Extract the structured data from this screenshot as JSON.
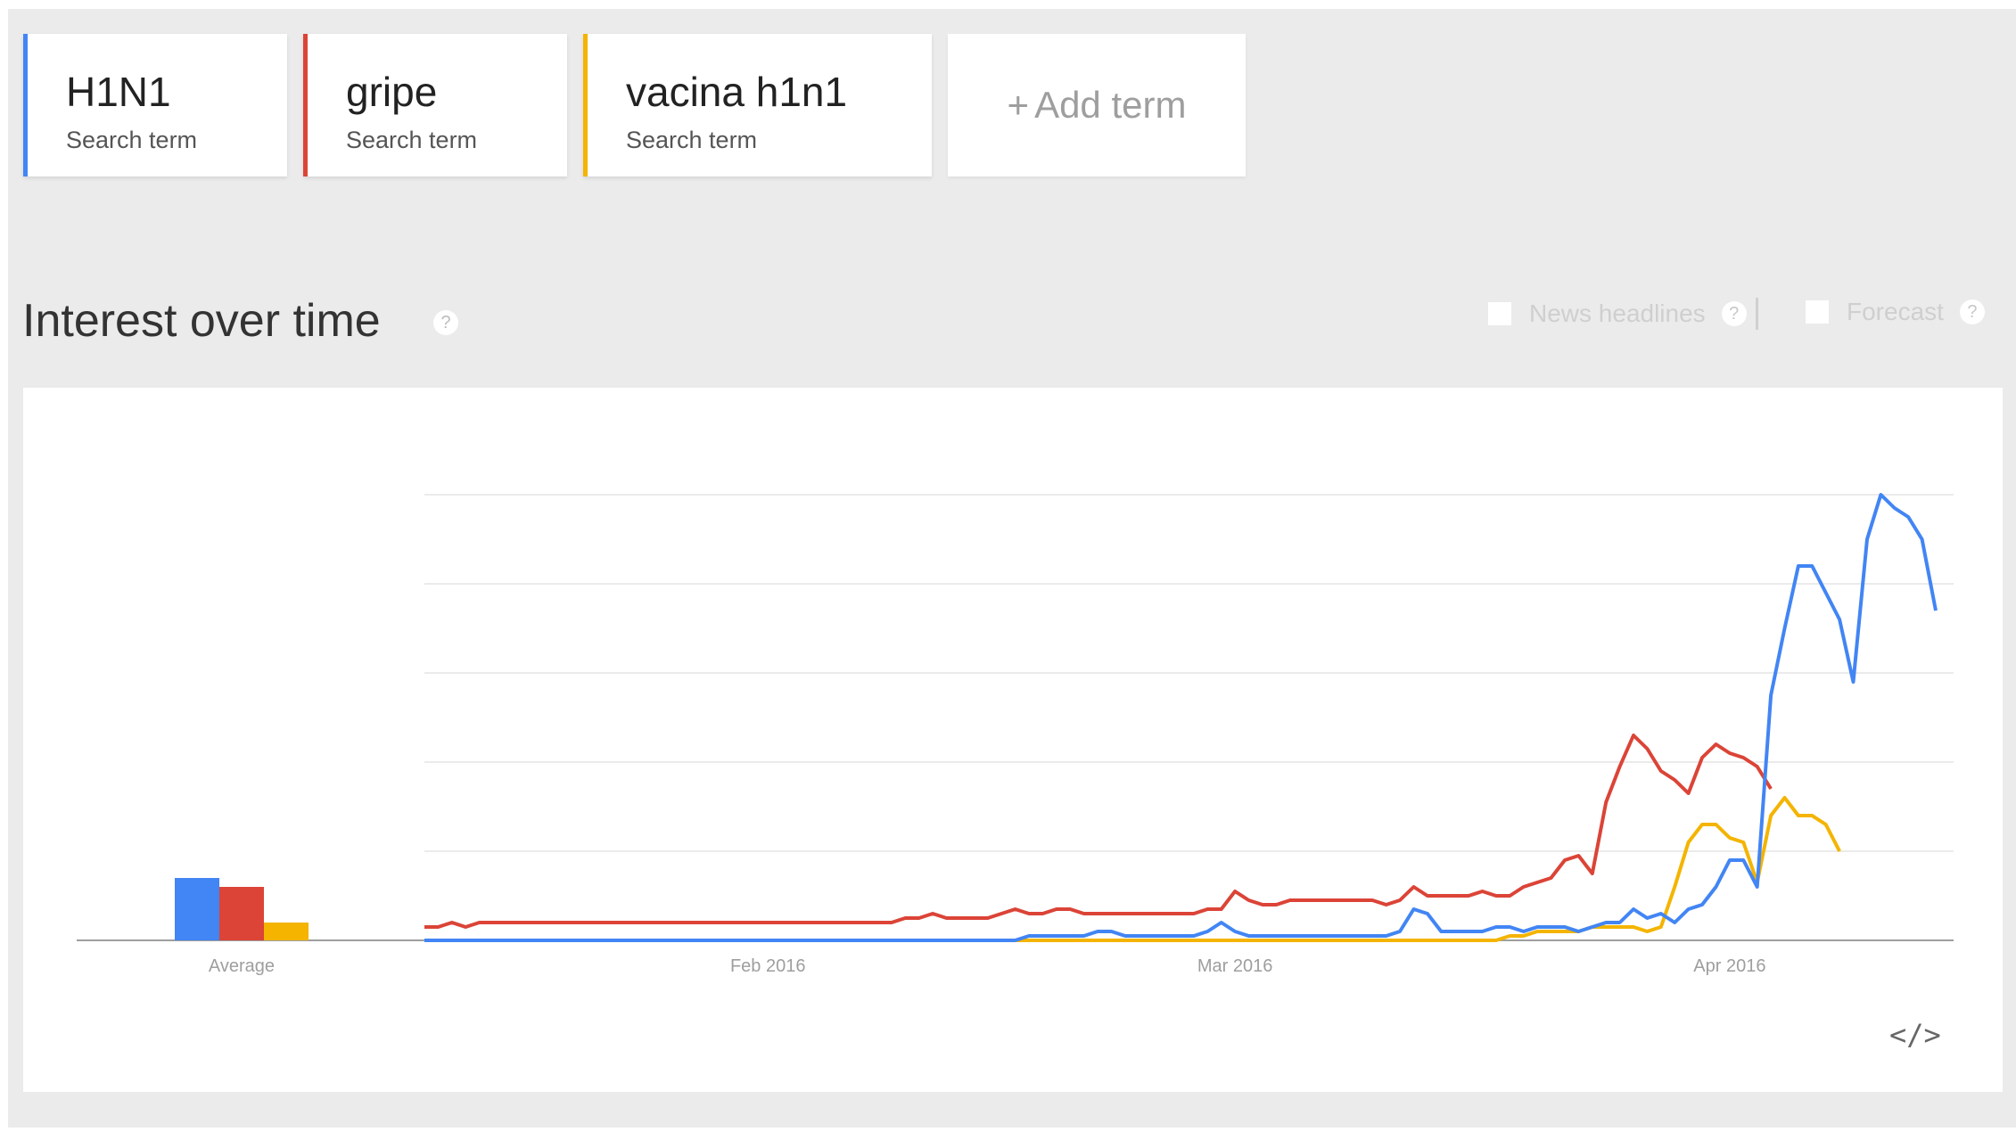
{
  "terms": [
    {
      "name": "H1N1",
      "sub": "Search term",
      "color": "#4285f4"
    },
    {
      "name": "gripe",
      "sub": "Search term",
      "color": "#db4437"
    },
    {
      "name": "vacina h1n1",
      "sub": "Search term",
      "color": "#f4b400"
    }
  ],
  "add_term": {
    "plus": "+",
    "label": "Add term"
  },
  "section": {
    "title": "Interest over time",
    "help": "?"
  },
  "options": {
    "news": {
      "label": "News headlines",
      "help": "?"
    },
    "forecast": {
      "label": "Forecast",
      "help": "?"
    }
  },
  "embed_icon": "code-embed-icon",
  "chart_data": {
    "type": "line",
    "title": "Interest over time",
    "ylim": [
      0,
      100
    ],
    "grid": true,
    "x_tick_labels": [
      "Feb 2016",
      "Mar 2016",
      "Apr 2016"
    ],
    "average": {
      "label": "Average",
      "values": [
        {
          "name": "H1N1",
          "value": 14
        },
        {
          "name": "gripe",
          "value": 12
        },
        {
          "name": "vacina h1n1",
          "value": 4
        }
      ]
    },
    "series": [
      {
        "name": "H1N1",
        "color": "#4285f4",
        "values": [
          0,
          0,
          0,
          0,
          0,
          0,
          0,
          0,
          0,
          0,
          0,
          0,
          0,
          0,
          0,
          0,
          0,
          0,
          0,
          0,
          0,
          0,
          0,
          0,
          0,
          0,
          0,
          0,
          0,
          0,
          0,
          0,
          0,
          0,
          0,
          0,
          0,
          0,
          0,
          0,
          0,
          0,
          0,
          0,
          1,
          1,
          1,
          1,
          1,
          2,
          2,
          1,
          1,
          1,
          1,
          1,
          1,
          2,
          4,
          2,
          1,
          1,
          1,
          1,
          1,
          1,
          1,
          1,
          1,
          1,
          1,
          2,
          7,
          6,
          2,
          2,
          2,
          2,
          3,
          3,
          2,
          3,
          3,
          3,
          2,
          3,
          4,
          4,
          7,
          5,
          6,
          4,
          7,
          8,
          12,
          18,
          18,
          12,
          55,
          70,
          84,
          84,
          78,
          72,
          58,
          90,
          100,
          97,
          95,
          90,
          74
        ]
      },
      {
        "name": "gripe",
        "color": "#db4437",
        "values": [
          3,
          3,
          4,
          3,
          4,
          4,
          4,
          4,
          4,
          4,
          4,
          4,
          4,
          4,
          4,
          4,
          4,
          4,
          4,
          4,
          4,
          4,
          4,
          4,
          4,
          4,
          4,
          4,
          4,
          4,
          4,
          4,
          4,
          4,
          4,
          5,
          5,
          6,
          5,
          5,
          5,
          5,
          6,
          7,
          6,
          6,
          7,
          7,
          6,
          6,
          6,
          6,
          6,
          6,
          6,
          6,
          6,
          7,
          7,
          11,
          9,
          8,
          8,
          9,
          9,
          9,
          9,
          9,
          9,
          9,
          8,
          9,
          12,
          10,
          10,
          10,
          10,
          11,
          10,
          10,
          12,
          13,
          14,
          18,
          19,
          15,
          31,
          39,
          46,
          43,
          38,
          36,
          33,
          41,
          44,
          42,
          41,
          39,
          34
        ]
      },
      {
        "name": "vacina h1n1",
        "color": "#f4b400",
        "values": [
          0,
          0,
          0,
          0,
          0,
          0,
          0,
          0,
          0,
          0,
          0,
          0,
          0,
          0,
          0,
          0,
          0,
          0,
          0,
          0,
          0,
          0,
          0,
          0,
          0,
          0,
          0,
          0,
          0,
          0,
          0,
          0,
          0,
          0,
          0,
          0,
          0,
          0,
          0,
          0,
          0,
          0,
          0,
          0,
          0,
          0,
          0,
          0,
          0,
          0,
          0,
          0,
          0,
          0,
          0,
          0,
          0,
          0,
          0,
          0,
          0,
          0,
          0,
          0,
          0,
          0,
          0,
          0,
          0,
          0,
          0,
          0,
          0,
          0,
          0,
          0,
          0,
          0,
          0,
          1,
          1,
          2,
          2,
          2,
          2,
          3,
          3,
          3,
          3,
          2,
          3,
          12,
          22,
          26,
          26,
          23,
          22,
          13,
          28,
          32,
          28,
          28,
          26,
          20
        ]
      }
    ]
  }
}
